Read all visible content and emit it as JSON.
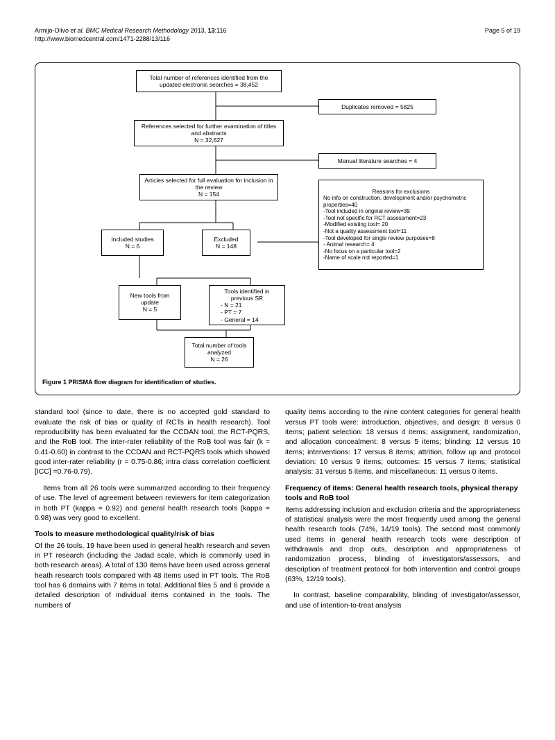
{
  "header": {
    "citation_prefix": "Armijo-Olivo ",
    "citation_italic": "et al. BMC Medical Research Methodology ",
    "citation_suffix": "2013, ",
    "volume_bold": "13",
    "citation_tail": ":116",
    "url": "http://www.biomedcentral.com/1471-2288/13/116",
    "page": "Page 5 of 19"
  },
  "flow": {
    "box1": "Total number of references identified from the updated electronic searches = 38,452",
    "box2": "Duplicates removed = 5825",
    "box3_l1": "References selected for further examination of titles and abstracts",
    "box3_l2": "N = 32,627",
    "box4": "Manual literature searches = 4",
    "box5_l1": "Articles selected for full evaluation for inclusion in the review",
    "box5_l2": "N = 154",
    "box6_l1": "Included studies",
    "box6_l2": "N = 6",
    "box7_l1": "Excluded",
    "box7_l2": "N = 148",
    "box8_title": "Reasons for exclusions",
    "box8_lines": [
      "No info on construction, development and/or psychometric properties=40",
      "-Tool included in original review=39",
      "-Tool not specific for RCT assessment=23",
      "-Modified existing tool= 20",
      "-Not a quality assessment tool=11",
      "-Tool developed for single review purposes=8",
      "- Animal research= 4",
      "-No focus on a particular tool=2",
      "-Name of scale not reported=1"
    ],
    "box9_l1": "New tools from update",
    "box9_l2": "N = 5",
    "box10_l1": "Tools identified in previous SR",
    "box10_items": [
      "-    N = 21",
      "-    PT = 7",
      "-    General = 14"
    ],
    "box11_l1": "Total number of tools analyzed",
    "box11_l2": "N = 26",
    "caption_bold": "Figure 1 PRISMA flow diagram for identification of studies."
  },
  "body": {
    "left": {
      "p1": "standard tool (since to date, there is no accepted gold standard to evaluate the risk of bias or quality of RCTs in health research). Tool reproducibility has been evaluated for the CCDAN tool, the RCT-PQRS, and the RoB tool. The inter-rater reliability of the RoB tool was fair (k = 0.41-0.60) in contrast to the CCDAN and RCT-PQRS tools which showed good inter-rater reliability (r = 0.75-0.86; intra class correlation coefficient [ICC] =0.76-0.79).",
      "p2": "Items from all 26 tools were summarized according to their frequency of use. The level of agreement between reviewers for item categorization in both PT (kappa = 0.92) and general health research tools (kappa = 0.98) was very good to excellent.",
      "h1": "Tools to measure methodological quality/risk of bias",
      "p3": "Of the 26 tools, 19 have been used in general health research and seven in PT research (including the Jadad scale, which is commonly used in both research areas). A total of 130 items have been used across general heath research tools compared with 48 items used in PT tools. The RoB tool has 6 domains with 7 items in total. Additional files 5 and 6 provide a detailed description of individual items contained in the tools. The numbers of"
    },
    "right": {
      "p1": "quality items according to the nine content categories for general health versus PT tools were: introduction, objectives, and design: 8 versus 0 items; patient selection: 18 versus 4 items; assignment, randomization, and allocation concealment: 8 versus 5 items; blinding: 12 versus 10 items; interventions: 17 versus 8 items; attrition, follow up and protocol deviation: 10 versus 9 items; outcomes: 15 versus 7 items; statistical analysis: 31 versus 5 items, and miscellaneous: 11 versus 0 items.",
      "h1": "Frequency of items: General health research tools, physical therapy tools and RoB tool",
      "p2": "Items addressing inclusion and exclusion criteria and the appropriateness of statistical analysis were the most frequently used among the general health research tools (74%, 14/19 tools). The second most commonly used items in general health research tools were description of withdrawals and drop outs, description and appropriateness of randomization process, blinding of investigators/assessors, and description of treatment protocol for both intervention and control groups (63%, 12/19 tools).",
      "p3": "In contrast, baseline comparability, blinding of investigator/assessor, and use of intention-to-treat analysis"
    }
  },
  "style": {
    "connector_color": "#000000"
  }
}
